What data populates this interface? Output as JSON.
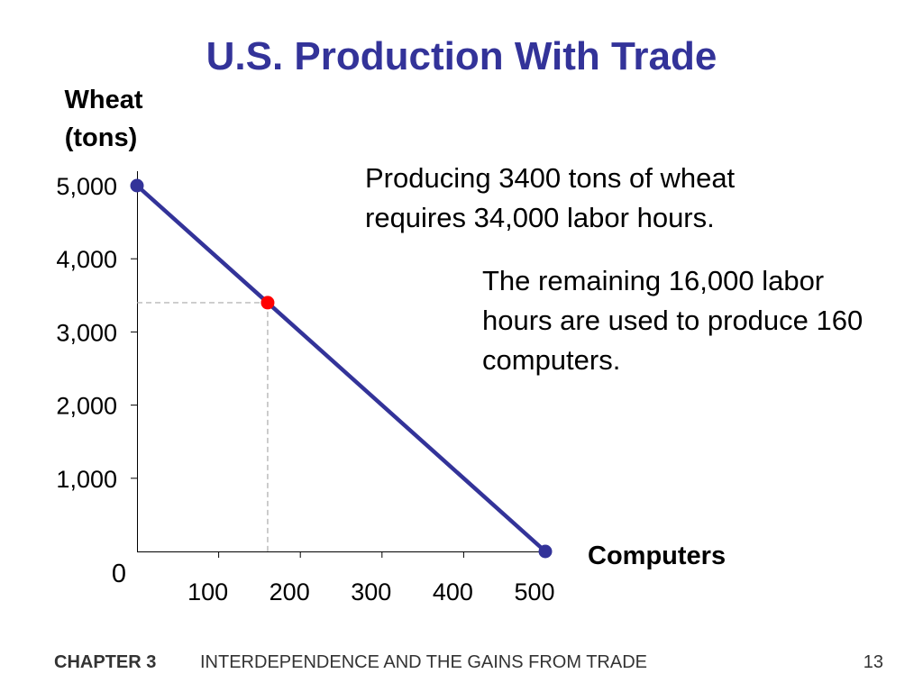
{
  "slide": {
    "title": "U.S. Production With Trade",
    "note_1": "Producing 3400 tons of wheat requires 34,000 labor hours.",
    "note_2": "The remaining 16,000 labor hours are used to produce 160 computers."
  },
  "footer": {
    "chapter": "CHAPTER 3",
    "chapter_title": "INTERDEPENDENCE AND THE GAINS FROM TRADE",
    "page": "13"
  },
  "colors": {
    "title": "#333399",
    "line": "#333399",
    "endpoint": "#333399",
    "highlight_point": "#ff0000",
    "guide": "#aaaaaa"
  },
  "chart_data": {
    "type": "line",
    "ylabel_line1": "Wheat",
    "ylabel_line2": "(tons)",
    "xlabel": "Computers",
    "xlim": [
      0,
      500
    ],
    "ylim": [
      0,
      5000
    ],
    "origin_label": "0",
    "x_ticks": [
      {
        "value": 100,
        "label": "100"
      },
      {
        "value": 200,
        "label": "200"
      },
      {
        "value": 300,
        "label": "300"
      },
      {
        "value": 400,
        "label": "400"
      },
      {
        "value": 500,
        "label": "500"
      }
    ],
    "y_ticks": [
      {
        "value": 1000,
        "label": "1,000"
      },
      {
        "value": 2000,
        "label": "2,000"
      },
      {
        "value": 3000,
        "label": "3,000"
      },
      {
        "value": 4000,
        "label": "4,000"
      },
      {
        "value": 5000,
        "label": "5,000"
      }
    ],
    "series": [
      {
        "x": [
          0,
          500
        ],
        "y": [
          5000,
          0
        ]
      }
    ],
    "endpoints": [
      {
        "x": 0,
        "y": 5000
      },
      {
        "x": 500,
        "y": 0
      }
    ],
    "highlight": {
      "x": 160,
      "y": 3400
    },
    "grid": false
  }
}
